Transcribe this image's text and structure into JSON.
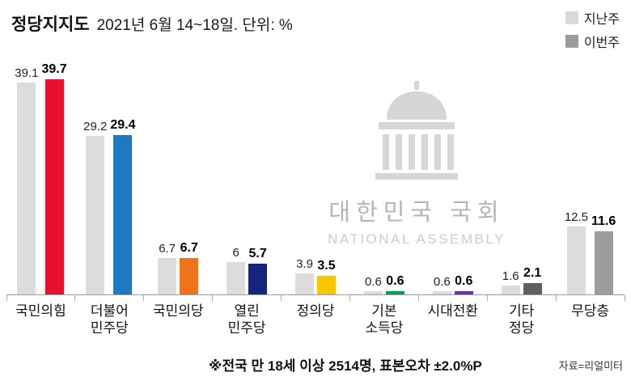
{
  "header": {
    "title": "정당지지도",
    "subtitle": "2021년 6월 14~18일. 단위: %"
  },
  "legend": {
    "last_week_swatch": "#d9d9d9",
    "this_week_swatch": "#9b9b9b"
  },
  "chart_data": {
    "type": "bar",
    "title": "정당지지도",
    "subtitle": "2021년 6월 14~18일. 단위: %",
    "unit": "%",
    "categories": [
      "국민의힘",
      "더불어\n민주당",
      "국민의당",
      "열린\n민주당",
      "정의당",
      "기본\n소득당",
      "시대전환",
      "기타\n정당",
      "무당층"
    ],
    "series": [
      {
        "name": "지난주",
        "color": "#dcdcdc",
        "values": [
          39.1,
          29.2,
          6.7,
          6,
          3.9,
          0.6,
          0.6,
          1.6,
          12.5
        ]
      },
      {
        "name": "이번주",
        "colors": [
          "#e8112d",
          "#1e79c0",
          "#ef731b",
          "#15257e",
          "#f9c700",
          "#00a24e",
          "#6f2da8",
          "#5f5f5f",
          "#9c9c9c"
        ],
        "values": [
          39.7,
          29.4,
          6.7,
          5.7,
          3.5,
          0.6,
          0.6,
          2.1,
          11.6
        ]
      }
    ],
    "ylim": [
      0,
      42
    ],
    "grid": false,
    "legend_position": "top-right"
  },
  "watermark": {
    "title": "대한민국 국회",
    "subtitle": "NATIONAL ASSEMBLY"
  },
  "footer": {
    "note": "※전국 만 18세 이상 2514명, 표본오차 ±2.0%P",
    "source": "자료=리얼미터"
  }
}
